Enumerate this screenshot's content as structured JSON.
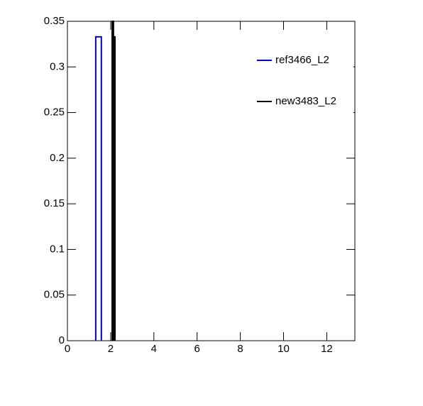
{
  "chart_data": {
    "type": "histogram",
    "xlim": [
      0,
      13.3
    ],
    "ylim": [
      0,
      0.35
    ],
    "xticks": [
      0,
      2,
      4,
      6,
      8,
      10,
      12
    ],
    "yticks": [
      0,
      0.05,
      0.1,
      0.15,
      0.2,
      0.25,
      0.3,
      0.35
    ],
    "legend": "top-right",
    "series": [
      {
        "name": "ref3466_L2",
        "color": "#0000cc",
        "bins": [
          1.31,
          1.57
        ],
        "values": [
          0.333
        ]
      },
      {
        "name": "new3483_L2",
        "color": "#000000",
        "bins": [
          2.07,
          2.13,
          2.2
        ],
        "values": [
          0.35,
          0.333
        ]
      }
    ]
  }
}
